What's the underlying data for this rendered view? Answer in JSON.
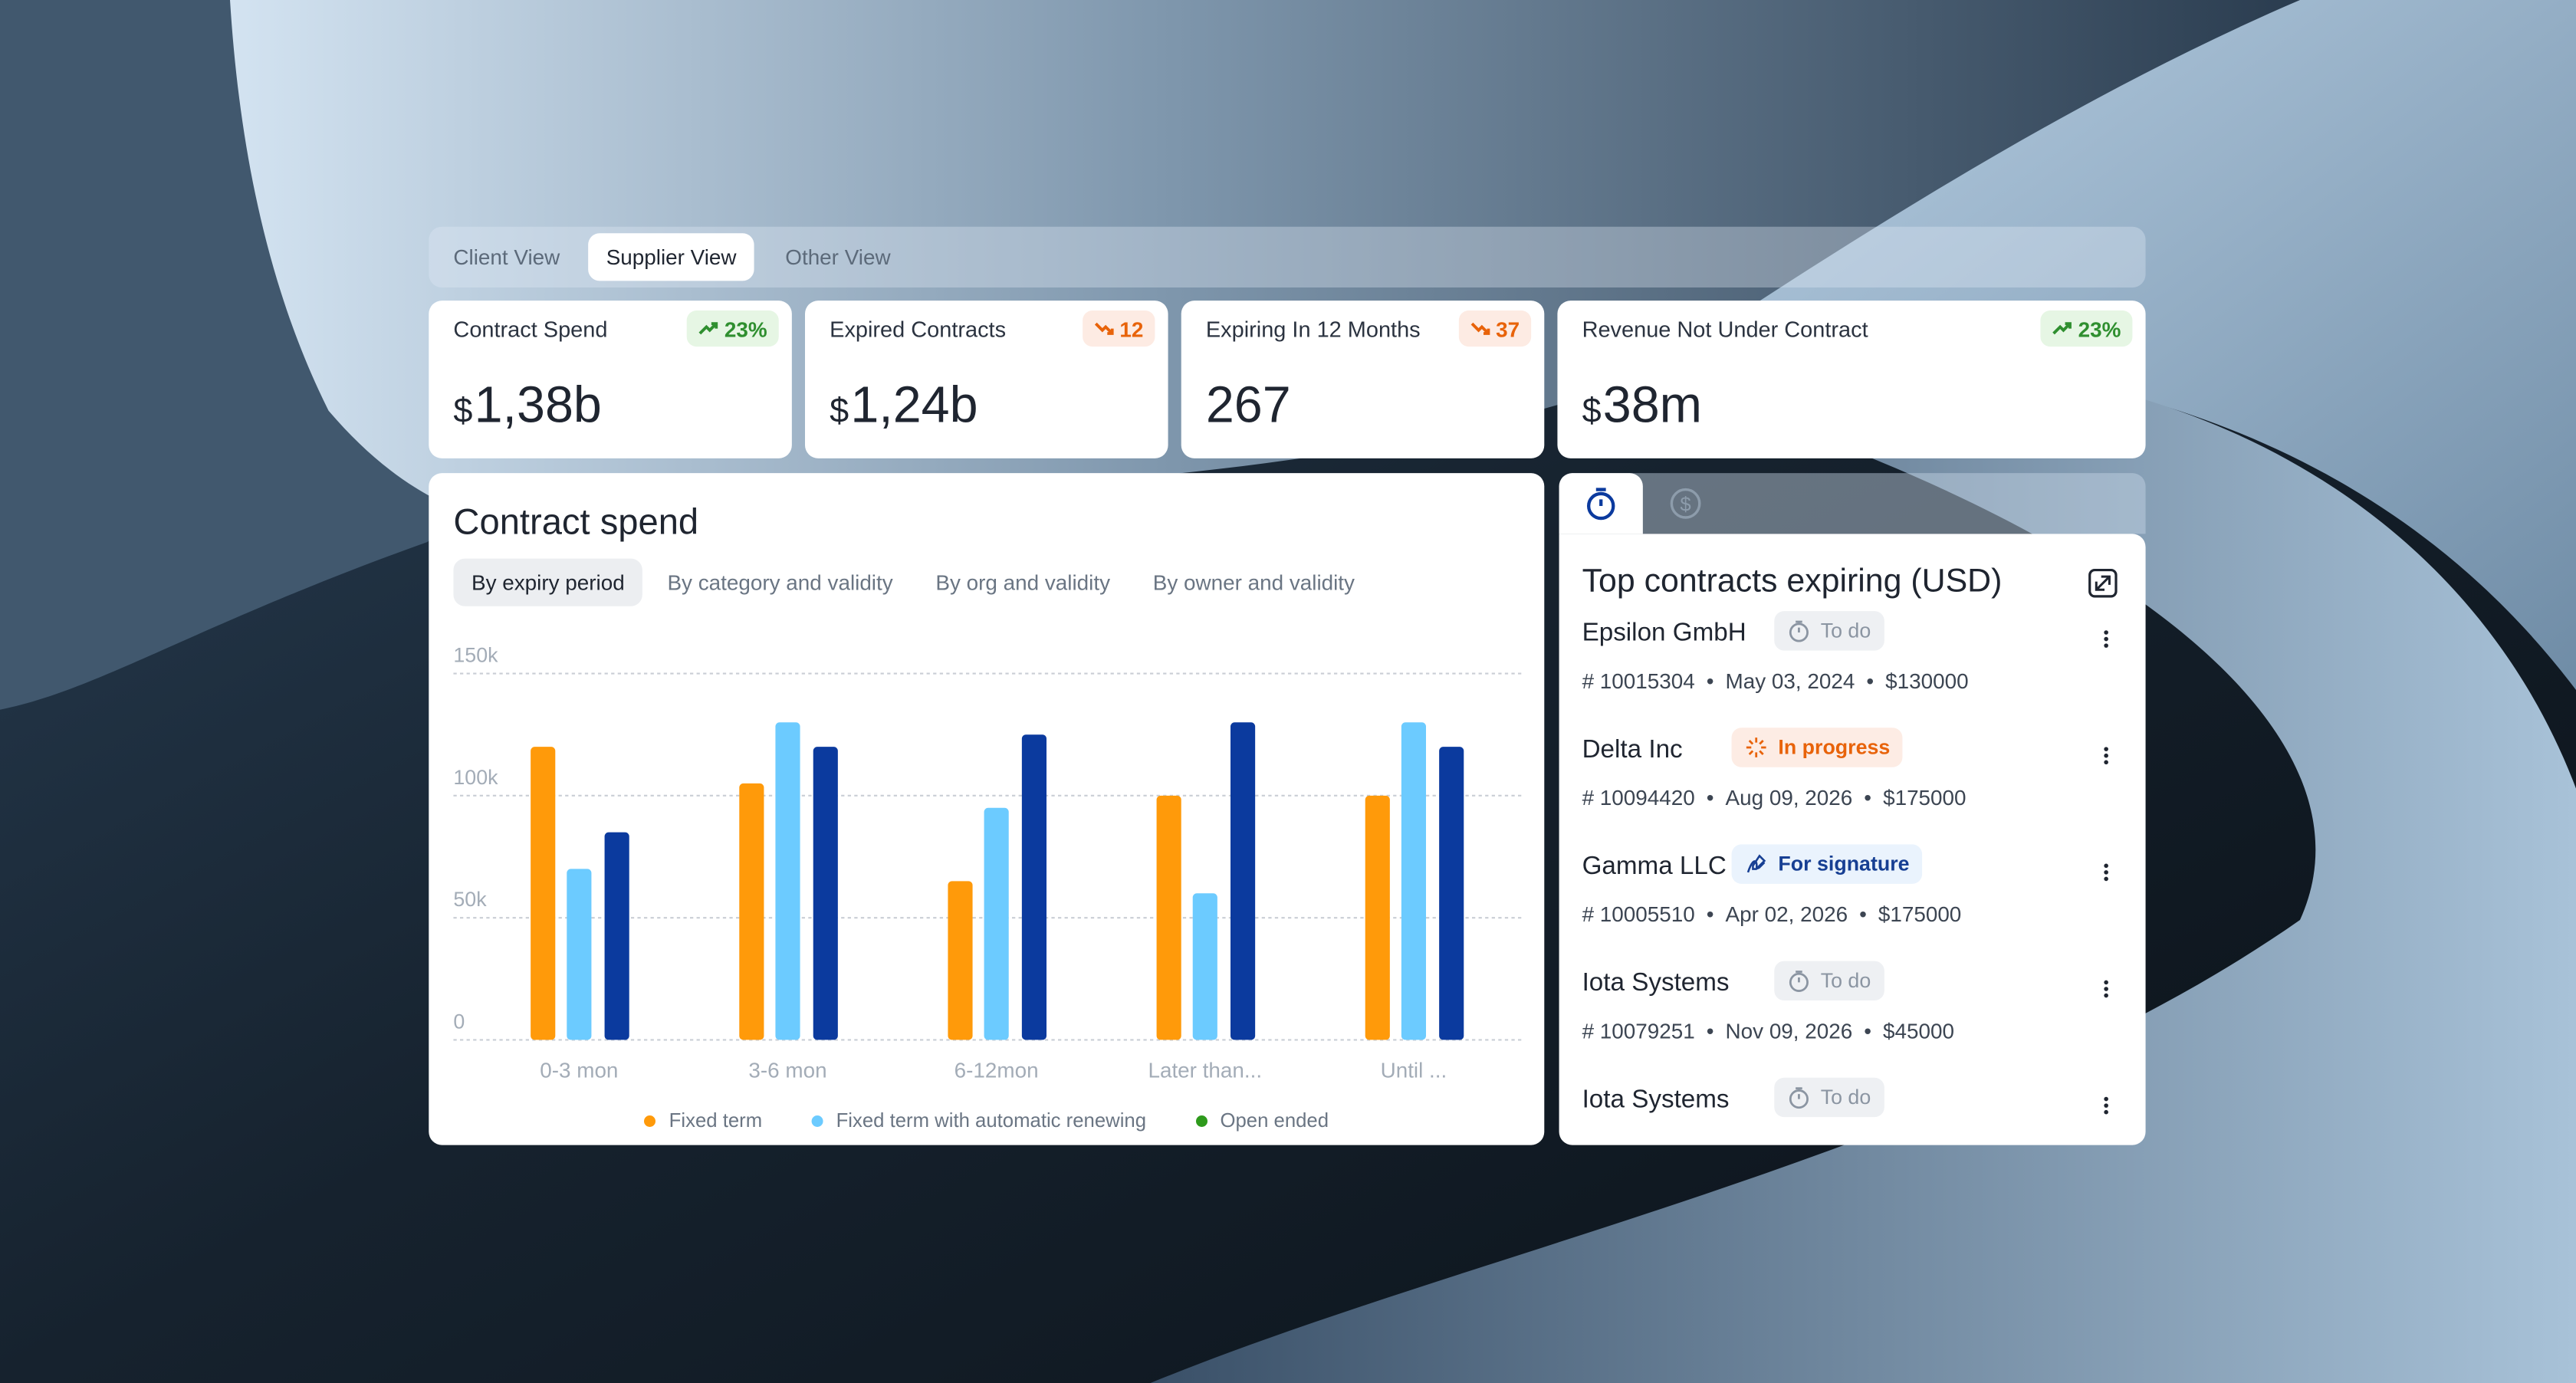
{
  "tabs": [
    "Client View",
    "Supplier View",
    "Other View"
  ],
  "active_tab": 1,
  "kpis": [
    {
      "label": "Contract Spend",
      "change": "23%",
      "trend": "up",
      "prefix": "$",
      "value": "1,38b"
    },
    {
      "label": "Expired Contracts",
      "change": "12",
      "trend": "down",
      "prefix": "$",
      "value": "1,24b"
    },
    {
      "label": "Expiring In 12 Months",
      "change": "37",
      "trend": "down",
      "value": "267"
    },
    {
      "label": "Revenue Not Under Contract",
      "change": "23%",
      "trend": "up",
      "prefix": "$",
      "value": "38m"
    }
  ],
  "chart_data": {
    "type": "bar",
    "title": "Contract spend",
    "filters": [
      "By expiry period",
      "By category and validity",
      "By org and validity",
      "By owner and validity"
    ],
    "active_filter": 0,
    "categories": [
      "0-3 mon",
      "3-6 mon",
      "6-12mon",
      "Later than...",
      "Until ..."
    ],
    "series": [
      {
        "name": "Fixed term",
        "color": "#ff9a0a",
        "legend_color": "#ff9a0a",
        "values": [
          120000,
          105000,
          65000,
          100000,
          100000
        ]
      },
      {
        "name": "Fixed term with automatic renewing",
        "color": "#6ccbff",
        "legend_color": "#6ccbff",
        "values": [
          70000,
          130000,
          95000,
          60000,
          130000
        ]
      },
      {
        "name": "Open ended",
        "color": "#0b3a9e",
        "legend_color": "#2e9a1c",
        "values": [
          85000,
          120000,
          125000,
          130000,
          120000
        ]
      }
    ],
    "ylim": [
      0,
      150000
    ],
    "yticks": [
      0,
      {
        "value": 50000,
        "label": "50k"
      },
      {
        "value": 100000,
        "label": "100k"
      },
      {
        "value": 150000,
        "label": "150k"
      }
    ],
    "grid": true
  },
  "contracts": {
    "title": "Top contracts expiring (USD)",
    "items": [
      {
        "name": "Epsilon GmbH",
        "status": "To do",
        "status_kind": "todo",
        "id": "# 10015304",
        "date": "May 03, 2024",
        "amount": "$130000"
      },
      {
        "name": "Delta Inc",
        "status": "In progress",
        "status_kind": "progress",
        "id": "# 10094420",
        "date": "Aug 09, 2026",
        "amount": "$175000"
      },
      {
        "name": "Gamma LLC",
        "status": "For signature",
        "status_kind": "signature",
        "id": "# 10005510",
        "date": "Apr 02, 2026",
        "amount": "$175000"
      },
      {
        "name": "Iota Systems",
        "status": "To do",
        "status_kind": "todo",
        "id": "# 10079251",
        "date": "Nov 09, 2026",
        "amount": "$45000"
      },
      {
        "name": "Iota Systems",
        "status": "To do",
        "status_kind": "todo"
      }
    ]
  }
}
